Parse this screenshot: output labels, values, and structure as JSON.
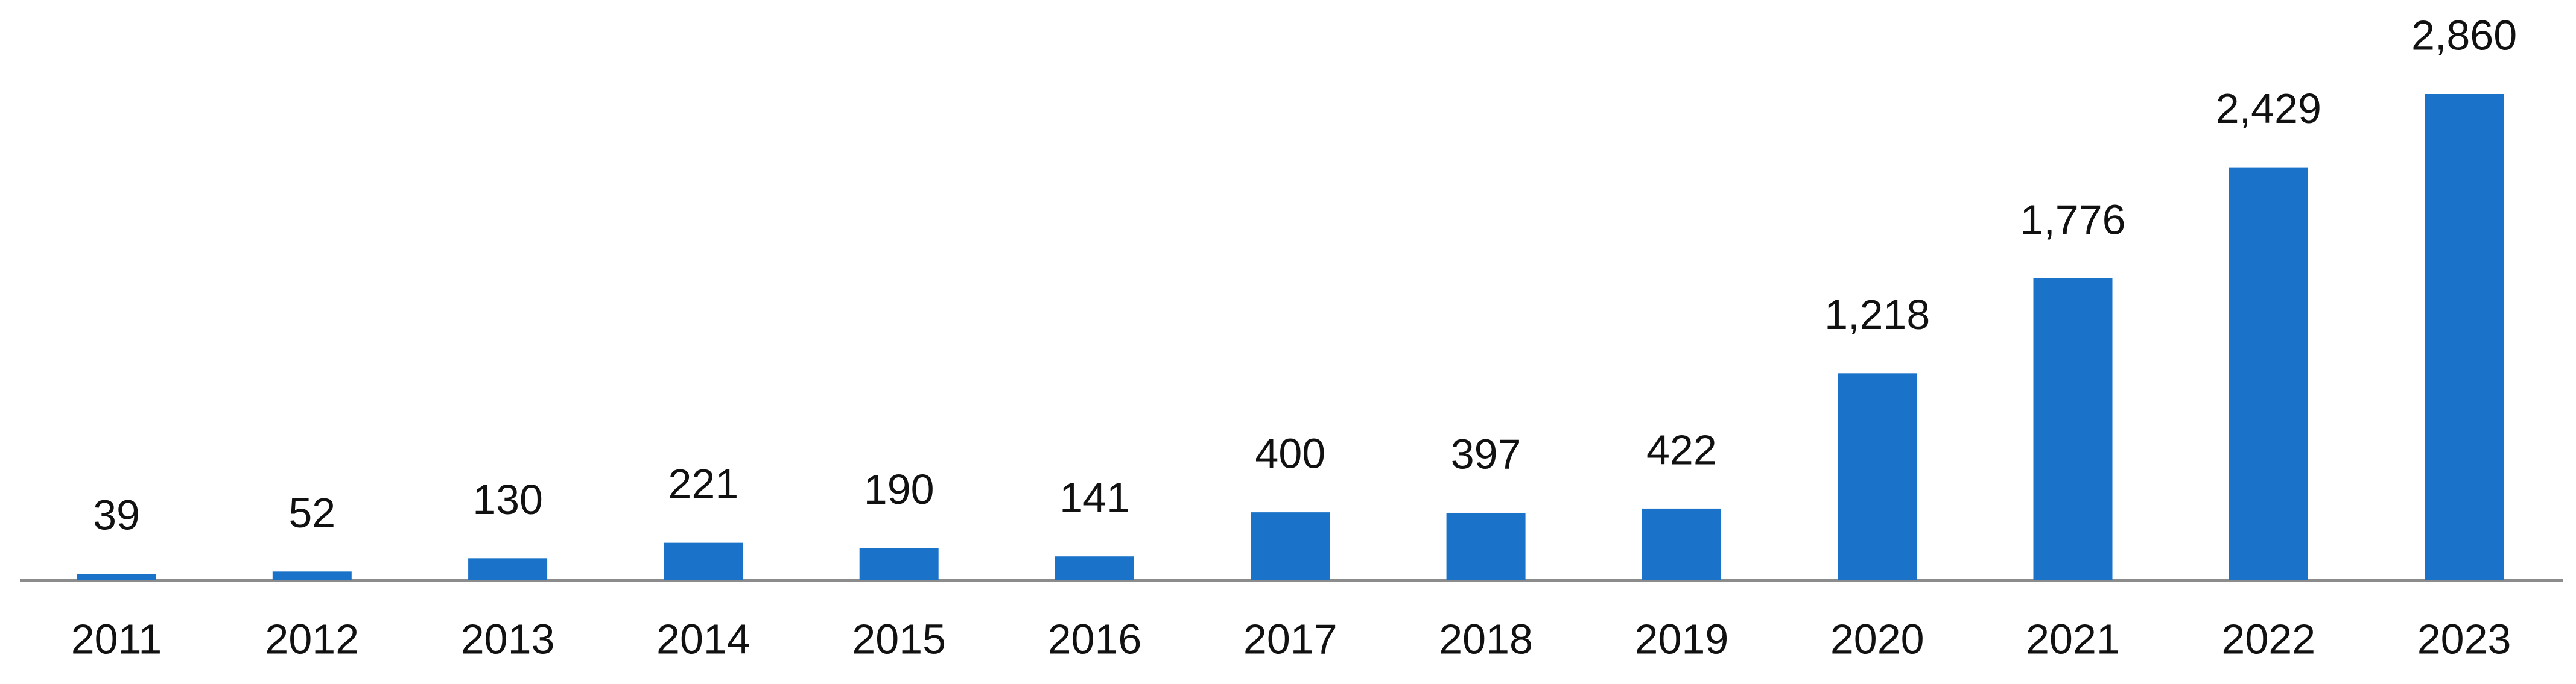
{
  "chart_data": {
    "type": "bar",
    "categories": [
      "2011",
      "2012",
      "2013",
      "2014",
      "2015",
      "2016",
      "2017",
      "2018",
      "2019",
      "2020",
      "2021",
      "2022",
      "2023"
    ],
    "values": [
      39,
      52,
      130,
      221,
      190,
      141,
      400,
      397,
      422,
      1218,
      1776,
      2429,
      2860
    ],
    "value_labels": [
      "39",
      "52",
      "130",
      "221",
      "190",
      "141",
      "400",
      "397",
      "422",
      "1,218",
      "1,776",
      "2,429",
      "2,860"
    ],
    "color": "#1a73c9"
  }
}
